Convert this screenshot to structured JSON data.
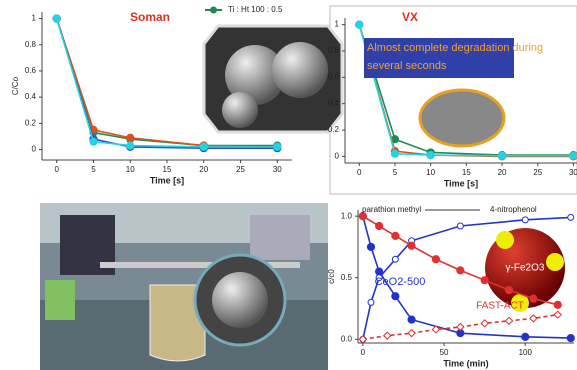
{
  "chart_data": [
    {
      "type": "line",
      "title": "Soman",
      "xlabel": "Time [s]",
      "ylabel": "C/Co",
      "xlim": [
        -2,
        32
      ],
      "ylim": [
        -0.08,
        1.05
      ],
      "xticks": [
        0,
        5,
        10,
        15,
        20,
        25,
        30
      ],
      "yticks": [
        0,
        0.2,
        0.4,
        0.6,
        0.8,
        1
      ],
      "series": [
        {
          "name": "Ti : Ht 100 : 0.5",
          "color": "#1e8a5a",
          "marker": "circle",
          "x": [
            0,
            5,
            10,
            20,
            30
          ],
          "values": [
            1,
            0.13,
            0.08,
            0.03,
            0.03
          ]
        },
        {
          "color": "#e0501e",
          "marker": "circle",
          "x": [
            0,
            5,
            10,
            20,
            30
          ],
          "values": [
            1,
            0.15,
            0.09,
            0.03,
            0.02
          ]
        },
        {
          "color": "#2a50c8",
          "marker": "circle",
          "x": [
            0,
            5,
            10,
            20,
            30
          ],
          "values": [
            1,
            0.08,
            0.02,
            0.01,
            0.01
          ]
        },
        {
          "color": "#22d3e0",
          "marker": "circle",
          "x": [
            0,
            5,
            10,
            20,
            30
          ],
          "values": [
            1,
            0.06,
            0.03,
            0.02,
            0.02
          ]
        }
      ]
    },
    {
      "type": "line",
      "title": "VX",
      "xlabel": "Time [s]",
      "annotations": [
        "Almost complete degradation during several seconds"
      ],
      "xlim": [
        -2,
        30.5
      ],
      "ylim": [
        -0.05,
        1.05
      ],
      "xticks": [
        0,
        5,
        10,
        15,
        20,
        25,
        30
      ],
      "yticks": [
        0,
        0.2,
        0.4,
        0.6,
        0.8,
        1
      ],
      "series": [
        {
          "color": "#1e8a5a",
          "marker": "circle",
          "x": [
            0,
            5,
            10,
            20,
            30
          ],
          "values": [
            1,
            0.13,
            0.03,
            0.01,
            0.01
          ]
        },
        {
          "color": "#e0501e",
          "marker": "circle",
          "x": [
            0,
            5,
            10,
            20,
            30
          ],
          "values": [
            1,
            0.04,
            0.01,
            0,
            0
          ]
        },
        {
          "color": "#22d3e0",
          "marker": "circle",
          "x": [
            0,
            5,
            10,
            20,
            30
          ],
          "values": [
            1,
            0.02,
            0.01,
            0.005,
            0.005
          ]
        }
      ]
    },
    {
      "type": "line",
      "xlabel": "Time (min)",
      "ylabel": "c/c0",
      "annotations": [
        "parathion methyl",
        "4-nitrophenol",
        "CeO2-500",
        "FAST-ACT",
        "γ-Fe2O3"
      ],
      "xlim": [
        -3,
        130
      ],
      "ylim": [
        -0.03,
        1.05
      ],
      "xticks": [
        0,
        50,
        100
      ],
      "yticks": [
        {
          "value": 0,
          "label": "0.0"
        },
        {
          "value": 0.5,
          "label": "0.5"
        },
        {
          "value": 1,
          "label": "1.0"
        }
      ],
      "series": [
        {
          "color": "#2233cc",
          "marker": "circle",
          "x": [
            0,
            5,
            10,
            20,
            30,
            60,
            100,
            128
          ],
          "values": [
            1,
            0.75,
            0.55,
            0.35,
            0.16,
            0.05,
            0.02,
            0.01
          ]
        },
        {
          "color": "#2233cc",
          "marker": "open-circle",
          "x": [
            0,
            5,
            10,
            20,
            30,
            60,
            100,
            128
          ],
          "values": [
            0,
            0.3,
            0.5,
            0.65,
            0.8,
            0.92,
            0.97,
            0.99
          ]
        },
        {
          "color": "#e03030",
          "marker": "circle",
          "x": [
            0,
            10,
            20,
            30,
            45,
            60,
            75,
            90,
            105,
            120
          ],
          "values": [
            1,
            0.92,
            0.84,
            0.76,
            0.65,
            0.56,
            0.48,
            0.4,
            0.33,
            0.28
          ]
        },
        {
          "color": "#e03030",
          "marker": "open-diamond",
          "dash": true,
          "x": [
            0,
            15,
            30,
            45,
            60,
            75,
            90,
            105,
            120
          ],
          "values": [
            0,
            0.03,
            0.05,
            0.08,
            0.1,
            0.13,
            0.15,
            0.17,
            0.2
          ]
        }
      ]
    }
  ]
}
